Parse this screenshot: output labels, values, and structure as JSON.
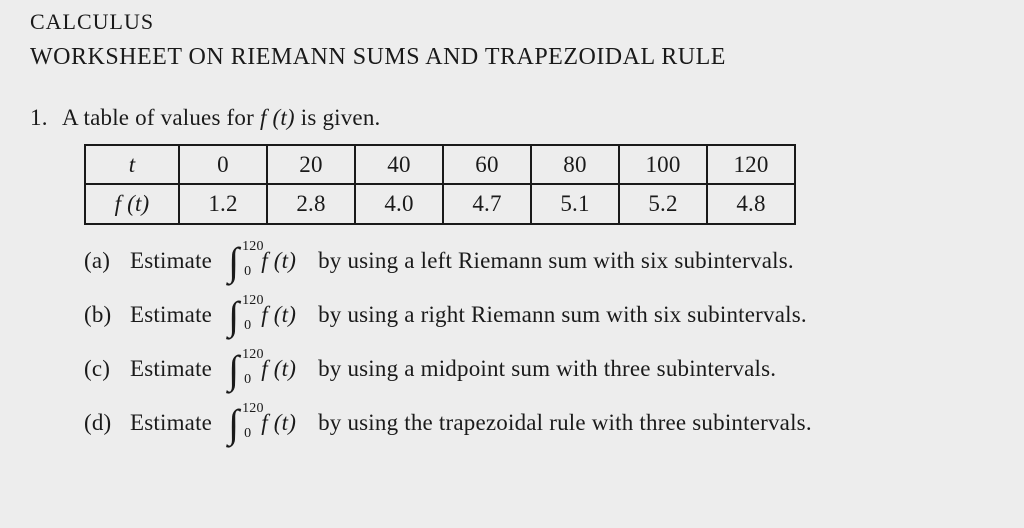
{
  "course": "CALCULUS",
  "title": "WORKSHEET ON RIEMANN SUMS AND TRAPEZOIDAL RULE",
  "question_number": "1.",
  "question_lead_a": "A table of values for ",
  "question_lead_fn": "f (t)",
  "question_lead_b": "  is given.",
  "table": {
    "row1": {
      "h": "t",
      "c0": "0",
      "c1": "20",
      "c2": "40",
      "c3": "60",
      "c4": "80",
      "c5": "100",
      "c6": "120"
    },
    "row2": {
      "h": "f (t)",
      "c0": "1.2",
      "c1": "2.8",
      "c2": "4.0",
      "c3": "4.7",
      "c4": "5.1",
      "c5": "5.2",
      "c6": "4.8"
    }
  },
  "integral": {
    "upper": "120",
    "lower": "0",
    "integrand": "f (t)"
  },
  "est_word": "Estimate",
  "parts": {
    "a": {
      "label": "(a)",
      "tail": "by using a left Riemann sum with six subintervals."
    },
    "b": {
      "label": "(b)",
      "tail": "by using a right Riemann sum with six subintervals."
    },
    "c": {
      "label": "(c)",
      "tail": "by using a midpoint sum with three subintervals."
    },
    "d": {
      "label": "(d)",
      "tail": "by using the trapezoidal rule with three subintervals."
    }
  }
}
